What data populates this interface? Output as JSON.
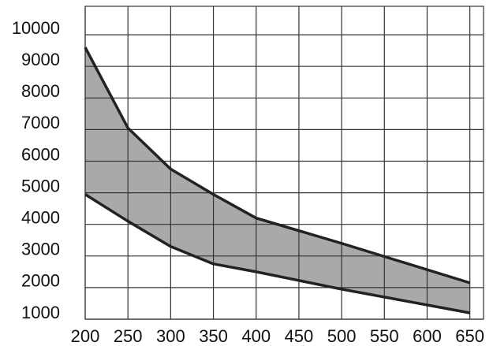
{
  "chart_data": {
    "type": "band",
    "x": [
      200,
      250,
      300,
      350,
      400,
      500,
      650
    ],
    "series": [
      {
        "color": "#222222",
        "values": [
          9600,
          7050,
          5750,
          4950,
          4200,
          3400,
          2150
        ]
      },
      {
        "color": "#222222",
        "values": [
          4950,
          4100,
          3300,
          2750,
          2500,
          1950,
          1200
        ]
      }
    ],
    "fill": "#a9a9a9",
    "xlim": [
      200,
      666
    ],
    "xticks": [
      200,
      250,
      300,
      350,
      400,
      450,
      500,
      550,
      600,
      650
    ],
    "ylim": [
      1000,
      10900
    ],
    "yticks": [
      1000,
      2000,
      3000,
      4000,
      5000,
      6000,
      7000,
      8000,
      9000,
      10000
    ],
    "grid": true
  }
}
